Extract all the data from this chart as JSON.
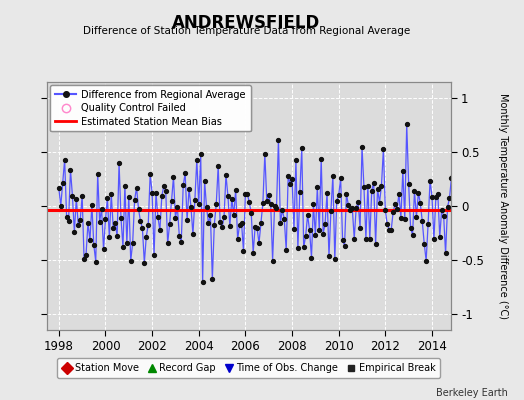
{
  "title": "ANDREWSFIELD",
  "subtitle": "Difference of Station Temperature Data from Regional Average",
  "ylabel": "Monthly Temperature Anomaly Difference (°C)",
  "xlabel_ticks": [
    1998,
    2000,
    2002,
    2004,
    2006,
    2008,
    2010,
    2012,
    2014
  ],
  "yticks": [
    -1,
    -0.5,
    0,
    0.5,
    1
  ],
  "ylim": [
    -1.15,
    1.15
  ],
  "xlim": [
    1997.5,
    2014.8
  ],
  "bias": -0.04,
  "background_color": "#e8e8e8",
  "plot_bg_color": "#dcdcdc",
  "line_color": "#5555ff",
  "marker_color": "#111111",
  "bias_color": "#ff0000",
  "footer": "Berkeley Earth",
  "seed": 42,
  "n_points": 204
}
